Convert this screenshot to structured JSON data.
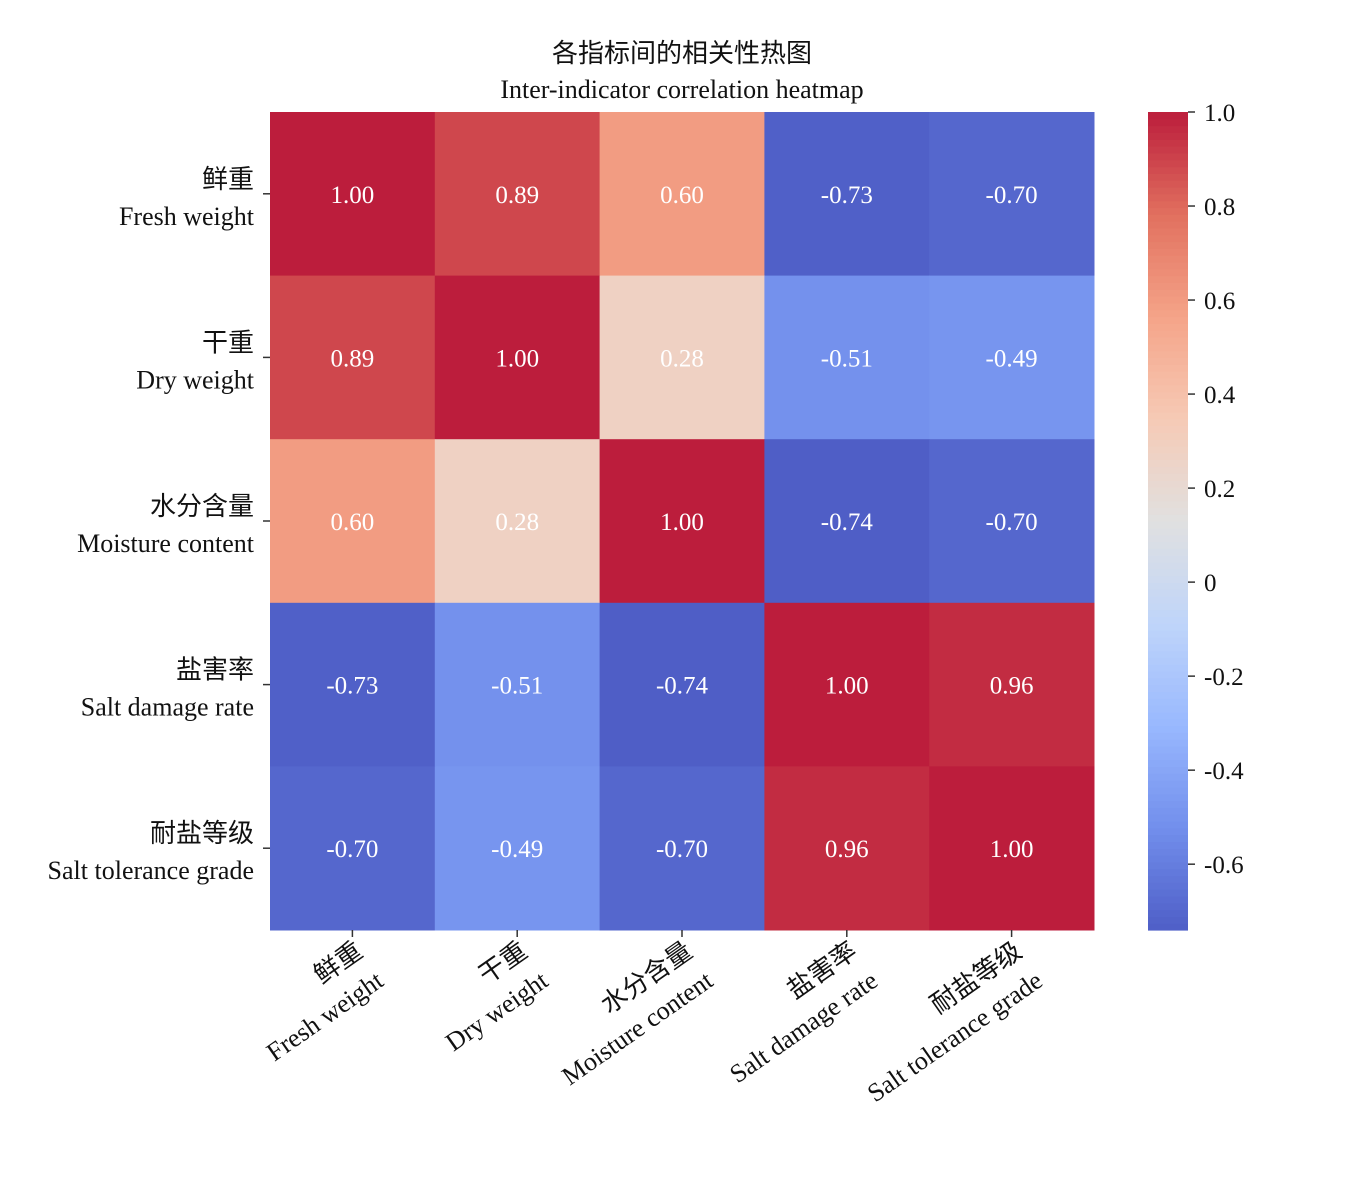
{
  "chart_data": {
    "type": "heatmap",
    "title": "各指标间的相关性热图",
    "subtitle": "Inter-indicator correlation heatmap",
    "labels": [
      {
        "zh": "鲜重",
        "en": "Fresh weight"
      },
      {
        "zh": "干重",
        "en": "Dry weight"
      },
      {
        "zh": "水分含量",
        "en": "Moisture content"
      },
      {
        "zh": "盐害率",
        "en": "Salt damage rate"
      },
      {
        "zh": "耐盐等级",
        "en": "Salt tolerance grade"
      }
    ],
    "values": [
      [
        1.0,
        0.89,
        0.6,
        -0.73,
        -0.7
      ],
      [
        0.89,
        1.0,
        0.28,
        -0.51,
        -0.49
      ],
      [
        0.6,
        0.28,
        1.0,
        -0.74,
        -0.7
      ],
      [
        -0.73,
        -0.51,
        -0.74,
        1.0,
        0.96
      ],
      [
        -0.7,
        -0.49,
        -0.7,
        0.96,
        1.0
      ]
    ],
    "colormap": "coolwarm",
    "vmin": -0.74,
    "vmax": 1.0,
    "colorbar_ticks": [
      1.0,
      0.8,
      0.6,
      0.4,
      0.2,
      0,
      -0.2,
      -0.4,
      -0.6
    ],
    "colorbar_tick_labels": [
      "1.0",
      "0.8",
      "0.6",
      "0.4",
      "0.2",
      "0",
      "-0.2",
      "-0.4",
      "-0.6"
    ],
    "annotation_color": "#ffffff"
  }
}
